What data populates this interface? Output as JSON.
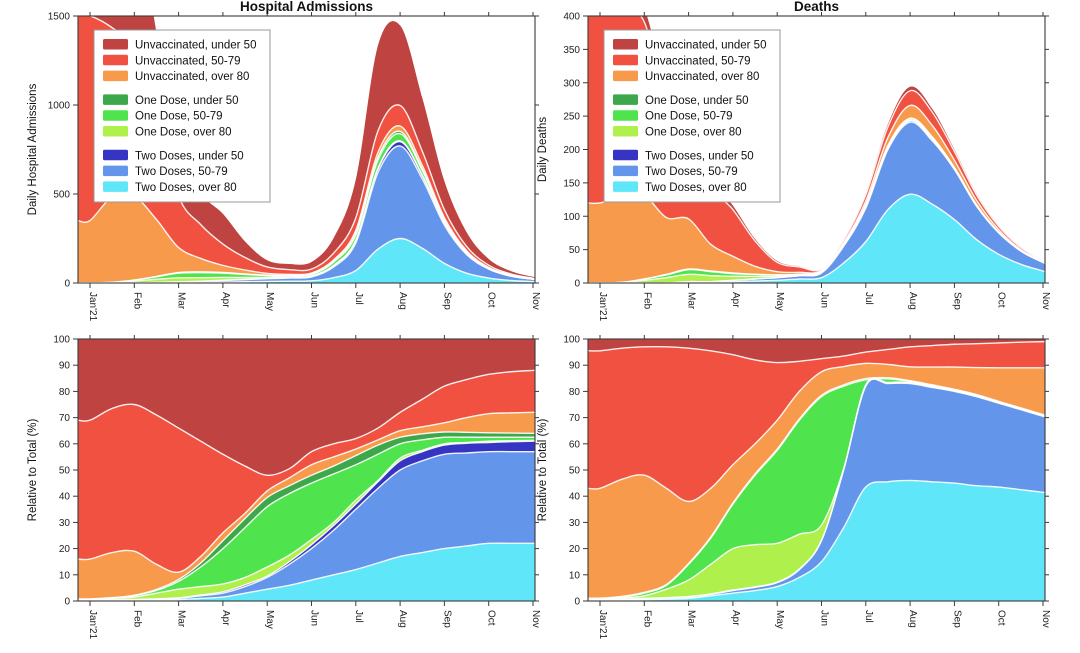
{
  "figure": {
    "background": "#ffffff"
  },
  "palette": {
    "unvax_under50": "#bf4340",
    "unvax_50_79": "#f15140",
    "unvax_over80": "#f79a4c",
    "one_under50": "#3da74c",
    "one_50_79": "#4fe44d",
    "one_over80": "#b0f04d",
    "two_under50": "#3634c2",
    "two_50_79": "#6396ea",
    "two_over80": "#5fe6f8"
  },
  "stack_order": [
    "two_over80",
    "two_50_79",
    "two_under50",
    "one_over80",
    "one_50_79",
    "one_under50",
    "unvax_over80",
    "unvax_50_79",
    "unvax_under50"
  ],
  "legend": {
    "groups": [
      [
        {
          "key": "unvax_under50",
          "label": "Unvaccinated, under 50"
        },
        {
          "key": "unvax_50_79",
          "label": "Unvaccinated, 50-79"
        },
        {
          "key": "unvax_over80",
          "label": "Unvaccinated, over 80"
        }
      ],
      [
        {
          "key": "one_under50",
          "label": "One Dose, under 50"
        },
        {
          "key": "one_50_79",
          "label": "One Dose, 50-79"
        },
        {
          "key": "one_over80",
          "label": "One Dose, over 80"
        }
      ],
      [
        {
          "key": "two_under50",
          "label": "Two Doses, under 50"
        },
        {
          "key": "two_50_79",
          "label": "Two Doses, 50-79"
        },
        {
          "key": "two_over80",
          "label": "Two Doses, over 80"
        }
      ]
    ]
  },
  "x_axis": {
    "tick_labels": [
      "Jan'21",
      "Feb",
      "Mar",
      "Apr",
      "May",
      "Jun",
      "Jul",
      "Aug",
      "Sep",
      "Oct",
      "Nov"
    ],
    "tick_positions": [
      0,
      1,
      2,
      3,
      4,
      5,
      6,
      7,
      8,
      9,
      10
    ]
  },
  "sample_x": [
    0,
    0.5,
    1,
    1.5,
    2,
    2.5,
    3,
    3.5,
    4,
    4.5,
    5,
    5.5,
    6,
    6.5,
    7,
    7.5,
    8,
    8.5,
    9,
    9.5,
    10
  ],
  "chart_data": [
    {
      "id": "hospital-admissions",
      "type": "area",
      "title": "Hospital Admissions",
      "ylabel": "Daily Hospital Admissions",
      "ylim": [
        0,
        1500
      ],
      "yticks": [
        0,
        500,
        1000,
        1500
      ],
      "stack_mode": "increments",
      "legend": true,
      "series": {
        "two_over80": [
          0,
          0,
          0,
          1,
          2,
          3,
          5,
          7,
          9,
          10,
          12,
          30,
          70,
          190,
          250,
          195,
          110,
          55,
          28,
          14,
          8
        ],
        "two_50_79": [
          0,
          0,
          1,
          2,
          4,
          6,
          9,
          12,
          15,
          18,
          22,
          60,
          155,
          430,
          520,
          390,
          215,
          105,
          50,
          24,
          13
        ],
        "two_under50": [
          0,
          0,
          0,
          0,
          1,
          1,
          2,
          2,
          2,
          2,
          3,
          6,
          12,
          20,
          24,
          18,
          10,
          5,
          2,
          1,
          1
        ],
        "one_over80": [
          1,
          3,
          10,
          18,
          22,
          20,
          15,
          10,
          6,
          4,
          3,
          3,
          4,
          5,
          5,
          4,
          3,
          2,
          1,
          1,
          0
        ],
        "one_50_79": [
          0,
          1,
          5,
          14,
          26,
          28,
          24,
          17,
          10,
          7,
          8,
          18,
          28,
          45,
          40,
          26,
          14,
          7,
          3,
          2,
          1
        ],
        "one_under50": [
          0,
          0,
          1,
          2,
          4,
          5,
          4,
          3,
          2,
          2,
          3,
          6,
          12,
          16,
          13,
          8,
          4,
          2,
          1,
          1,
          0
        ],
        "unvax_over80": [
          350,
          480,
          470,
          320,
          140,
          75,
          40,
          22,
          10,
          6,
          5,
          7,
          15,
          28,
          30,
          20,
          11,
          6,
          3,
          2,
          1
        ],
        "unvax_50_79": [
          1150,
          950,
          830,
          620,
          290,
          190,
          120,
          70,
          36,
          26,
          22,
          38,
          70,
          120,
          115,
          80,
          45,
          24,
          12,
          6,
          3
        ],
        "unvax_under50": [
          1930,
          1500,
          900,
          430,
          290,
          180,
          170,
          90,
          38,
          32,
          40,
          85,
          215,
          480,
          450,
          300,
          160,
          80,
          35,
          16,
          8
        ]
      }
    },
    {
      "id": "deaths",
      "type": "area",
      "title": "Deaths",
      "ylabel": "Daily Deaths",
      "ylim": [
        0,
        400
      ],
      "yticks": [
        0,
        50,
        100,
        150,
        200,
        250,
        300,
        350,
        400
      ],
      "stack_mode": "increments",
      "legend": true,
      "series": {
        "two_over80": [
          0,
          0,
          0,
          0,
          1,
          1,
          2,
          3,
          4,
          6,
          8,
          30,
          62,
          110,
          133,
          118,
          95,
          65,
          43,
          28,
          18
        ],
        "two_50_79": [
          0,
          0,
          0,
          0,
          1,
          1,
          2,
          3,
          4,
          5,
          7,
          25,
          50,
          90,
          108,
          95,
          75,
          50,
          32,
          20,
          13
        ],
        "two_under50": [
          0,
          0,
          0,
          0,
          0,
          0,
          0,
          0,
          0,
          0,
          1,
          1,
          2,
          2,
          2,
          2,
          1,
          1,
          1,
          0,
          0
        ],
        "one_over80": [
          0,
          1,
          4,
          8,
          11,
          9,
          6,
          4,
          2,
          1,
          1,
          1,
          1,
          1,
          1,
          1,
          1,
          0,
          0,
          0,
          0
        ],
        "one_50_79": [
          0,
          0,
          2,
          4,
          7,
          6,
          4,
          3,
          2,
          1,
          1,
          1,
          2,
          2,
          2,
          2,
          1,
          1,
          0,
          0,
          0
        ],
        "one_under50": [
          0,
          0,
          0,
          1,
          1,
          1,
          1,
          0,
          0,
          0,
          0,
          0,
          1,
          1,
          1,
          1,
          0,
          0,
          0,
          0,
          0
        ],
        "unvax_over80": [
          120,
          128,
          125,
          85,
          75,
          40,
          25,
          12,
          5,
          3,
          1,
          2,
          5,
          12,
          19,
          17,
          11,
          7,
          4,
          2,
          1
        ],
        "unvax_50_79": [
          310,
          290,
          260,
          180,
          150,
          90,
          70,
          38,
          14,
          8,
          2,
          4,
          9,
          16,
          22,
          20,
          13,
          8,
          5,
          3,
          1
        ],
        "unvax_under50": [
          30,
          25,
          20,
          15,
          15,
          10,
          6,
          3,
          2,
          1,
          0,
          1,
          2,
          4,
          6,
          5,
          3,
          2,
          1,
          1,
          0
        ]
      }
    },
    {
      "id": "hospital-admissions-relative",
      "type": "area",
      "title": "",
      "ylabel": "Relative to Total (%)",
      "ylim": [
        0,
        100
      ],
      "yticks": [
        0,
        10,
        20,
        30,
        40,
        50,
        60,
        70,
        80,
        90,
        100
      ],
      "stack_mode": "cumulative",
      "legend": false,
      "series": {
        "two_over80": [
          0.2,
          0.25,
          0.3,
          0.4,
          0.5,
          1,
          1.5,
          3,
          4.5,
          6,
          8,
          10,
          12,
          14.5,
          17,
          18.5,
          20,
          21,
          22,
          22,
          22
        ],
        "two_50_79": [
          0.3,
          0.4,
          0.5,
          0.7,
          1,
          2,
          3,
          5.5,
          9,
          14,
          20,
          27,
          35,
          43,
          50,
          53.5,
          56,
          56.5,
          57,
          57,
          57
        ],
        "two_under50": [
          0.35,
          0.45,
          0.6,
          0.85,
          1.2,
          2.3,
          3.5,
          6.2,
          9.5,
          15,
          21.5,
          28.8,
          37,
          45.5,
          53.5,
          57,
          59.5,
          60.2,
          60.5,
          60.8,
          61
        ],
        "one_over80": [
          0.6,
          1,
          1.5,
          3,
          4.5,
          5.5,
          6.5,
          9,
          13,
          17.5,
          23.5,
          30,
          38.5,
          46,
          54.5,
          57.5,
          60,
          60.5,
          61,
          61.2,
          61.3
        ],
        "one_50_79": [
          0.7,
          1.2,
          2,
          4,
          7.5,
          13,
          20,
          28,
          36,
          41,
          45,
          48.5,
          52,
          56,
          60,
          61.5,
          62.5,
          62.5,
          62.5,
          62.5,
          62.5
        ],
        "one_under50": [
          0.8,
          1.3,
          2.2,
          4.4,
          8.2,
          14.5,
          23,
          31.5,
          39.5,
          44,
          48,
          51.5,
          55.5,
          59.5,
          62.5,
          63.8,
          64.5,
          64.4,
          64.2,
          64.1,
          64
        ],
        "unvax_over80": [
          16,
          18.5,
          19,
          14,
          11,
          17,
          26,
          33.5,
          42,
          47,
          52,
          55,
          58,
          61.5,
          65,
          66.5,
          68,
          70,
          71.5,
          71.8,
          72
        ],
        "unvax_50_79": [
          69,
          73.5,
          75,
          71,
          66,
          61,
          56,
          51.5,
          48,
          50.5,
          57,
          60,
          62,
          66,
          72,
          77,
          82,
          84.5,
          86.5,
          87.5,
          88
        ],
        "unvax_under50": [
          100,
          100,
          100,
          100,
          100,
          100,
          100,
          100,
          100,
          100,
          100,
          100,
          100,
          100,
          100,
          100,
          100,
          100,
          100,
          100,
          100
        ]
      }
    },
    {
      "id": "deaths-relative",
      "type": "area",
      "title": "",
      "ylabel": "Relative to Total (%)",
      "ylim": [
        0,
        100
      ],
      "yticks": [
        0,
        10,
        20,
        30,
        40,
        50,
        60,
        70,
        80,
        90,
        100
      ],
      "stack_mode": "cumulative",
      "legend": false,
      "series": {
        "two_over80": [
          0.2,
          0.3,
          0.5,
          0.7,
          1,
          2,
          3,
          4,
          5.5,
          9,
          15,
          28,
          43.5,
          45.5,
          46,
          45.5,
          45,
          44,
          43.5,
          42.5,
          41.5
        ],
        "two_50_79": [
          0.4,
          0.6,
          0.8,
          1.1,
          1.5,
          2.5,
          4,
          5.2,
          7,
          12,
          23,
          50,
          82,
          83,
          83,
          81.5,
          80,
          78,
          75.5,
          73,
          70.5
        ],
        "two_under50": [
          0.6,
          0.8,
          1,
          1.3,
          1.7,
          2.7,
          4.2,
          5.4,
          7.2,
          12.2,
          23.2,
          50.2,
          82.2,
          83.2,
          83.2,
          81.7,
          80.2,
          78.2,
          75.7,
          73.2,
          70.7
        ],
        "one_over80": [
          0.7,
          1.2,
          2,
          4.5,
          8,
          14,
          20,
          21.5,
          22,
          25.5,
          29,
          50.5,
          82.5,
          83.4,
          83.4,
          82,
          80.4,
          78.4,
          75.9,
          73.4,
          70.9
        ],
        "one_50_79": [
          0.8,
          1.5,
          3,
          6,
          14,
          24,
          37,
          48,
          57.5,
          69,
          78,
          82,
          84.4,
          84.8,
          83.8,
          82.3,
          80.6,
          78.6,
          76,
          73.5,
          71
        ],
        "one_under50": [
          1.1,
          1.8,
          3.3,
          6.3,
          14.3,
          24.4,
          37.4,
          48.5,
          58,
          69.5,
          78.5,
          82.5,
          84.9,
          85.2,
          84.1,
          82.5,
          80.8,
          78.8,
          76.2,
          73.7,
          71.2
        ],
        "unvax_over80": [
          43,
          46.5,
          48,
          43,
          38,
          43,
          52,
          60,
          69,
          80,
          87.5,
          89.5,
          90.7,
          90.3,
          89.4,
          89.3,
          89.3,
          89.1,
          89,
          89,
          89
        ],
        "unvax_50_79": [
          95.5,
          96.5,
          97,
          97,
          96.5,
          95.5,
          94,
          92,
          91,
          91.5,
          92.5,
          93.5,
          95,
          96,
          97,
          97.5,
          98,
          98.2,
          98.5,
          98.8,
          99
        ],
        "unvax_under50": [
          100,
          100,
          100,
          100,
          100,
          100,
          100,
          100,
          100,
          100,
          100,
          100,
          100,
          100,
          100,
          100,
          100,
          100,
          100,
          100,
          100
        ]
      }
    }
  ]
}
